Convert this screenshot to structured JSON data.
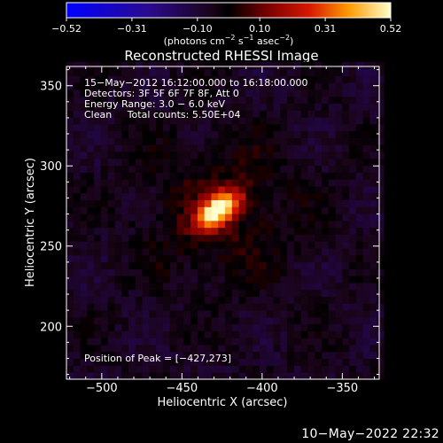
{
  "chart_data": {
    "type": "heatmap",
    "title": "Reconstructed RHESSI Image",
    "xlabel": "Heliocentric X (arcsec)",
    "ylabel": "Heliocentric Y (arcsec)",
    "xlim": [
      -522,
      -327
    ],
    "ylim": [
      167,
      362
    ],
    "xticks": [
      -500,
      -450,
      -400,
      -350
    ],
    "yticks": [
      200,
      250,
      300,
      350
    ],
    "colorbar": {
      "min": -0.52,
      "max": 0.52,
      "tick_values": [
        -0.52,
        -0.31,
        -0.1,
        0.1,
        0.31,
        0.52
      ],
      "tick_labels": [
        "−0.52",
        "−0.31",
        "−0.10",
        "0.10",
        "0.31",
        "0.52"
      ],
      "units_line": "(photons cm",
      "units_exp1": "−2",
      "units_mid": " s",
      "units_exp2": "−1",
      "units_end": " asec",
      "units_exp3": "−2",
      "units_close": ")"
    },
    "info_lines": [
      "15−May−2012 16:12:00.000 to 16:18:00.000",
      "Detectors: 3F 5F 6F 7F 8F, Att 0",
      "Energy Range: 3.0 − 6.0 keV",
      "Clean     Total counts: 5.50E+04"
    ],
    "peak_label": "Position of Peak = [−427,273]",
    "source": {
      "peak_x": -427,
      "peak_y": 273,
      "peak_value": 0.52,
      "sigma_major_arcsec": 11,
      "sigma_minor_arcsec": 6,
      "orientation_deg": -35
    }
  },
  "footer_timestamp": "10−May−2022 22:32"
}
